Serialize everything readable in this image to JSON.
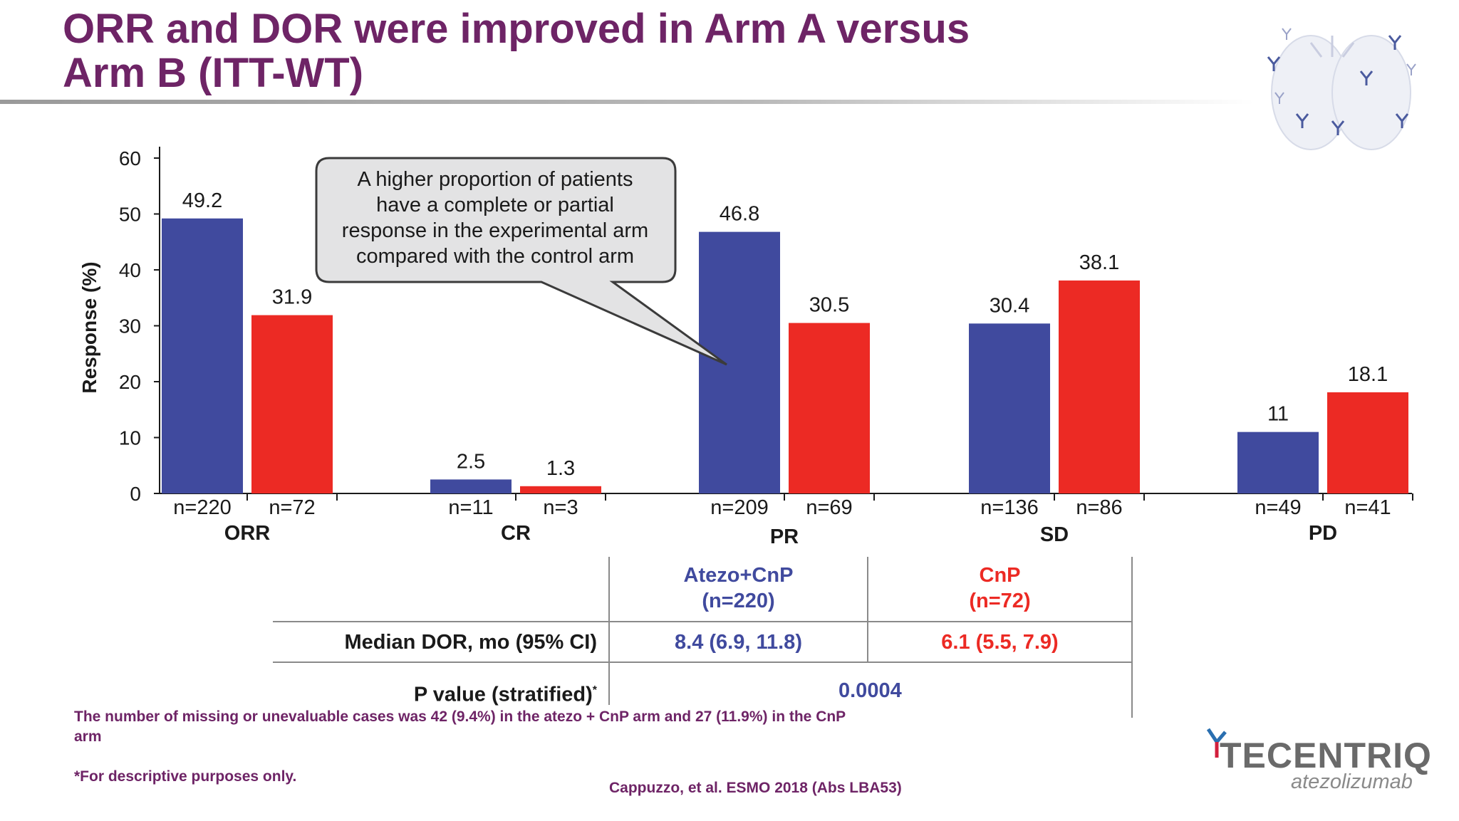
{
  "title": {
    "line1": "ORR and DOR were improved in Arm A versus",
    "line2": "Arm B (ITT-WT)"
  },
  "colors": {
    "arm_a": "#404a9e",
    "arm_b": "#ec2a24",
    "title": "#6e2466",
    "axis": "#1a1a1a"
  },
  "chart_data": {
    "type": "bar",
    "ylabel": "Response (%)",
    "ylim": [
      0,
      60
    ],
    "yticks": [
      0,
      10,
      20,
      30,
      40,
      50,
      60
    ],
    "categories": [
      "ORR",
      "CR",
      "PR",
      "SD",
      "PD"
    ],
    "series": [
      {
        "name": "Atezo+CnP",
        "values": [
          49.2,
          2.5,
          46.8,
          30.4,
          11
        ],
        "labels": [
          "49.2",
          "2.5",
          "46.8",
          "30.4",
          "11"
        ],
        "n": [
          "n=220",
          "n=11",
          "n=209",
          "n=136",
          "n=49"
        ]
      },
      {
        "name": "CnP",
        "values": [
          31.9,
          1.3,
          30.5,
          38.1,
          18.1
        ],
        "labels": [
          "31.9",
          "1.3",
          "30.5",
          "38.1",
          "18.1"
        ],
        "n": [
          "n=72",
          "n=3",
          "n=69",
          "n=86",
          "n=41"
        ]
      }
    ],
    "annotation": [
      "A higher proportion of patients",
      "have a complete or partial",
      "response in the experimental arm",
      "compared with the control arm"
    ]
  },
  "table": {
    "headers": [
      {
        "line1": "Atezo+CnP",
        "line2": "(n=220)"
      },
      {
        "line1": "CnP",
        "line2": "(n=72)"
      }
    ],
    "rows": [
      {
        "label": "Median DOR, mo (95% CI)",
        "a": "8.4 (6.9, 11.8)",
        "b": "6.1 (5.5, 7.9)"
      },
      {
        "label": "P value (stratified)",
        "sup": "*",
        "value": "0.0004"
      }
    ]
  },
  "footnotes": {
    "missing_line1": "The number of missing or unevaluable cases was 42 (9.4%) in the atezo + CnP arm and 27 (11.9%) in the CnP",
    "missing_line2": "arm",
    "descriptive": "*For descriptive purposes only."
  },
  "citation": "Cappuzzo, et al. ESMO 2018 (Abs LBA53)",
  "logo": {
    "name": "TECENTRIQ",
    "generic": "atezolizumab",
    "icon": "antibody-icon"
  },
  "decoration": {
    "icon": "lung-antibody-illustration"
  }
}
